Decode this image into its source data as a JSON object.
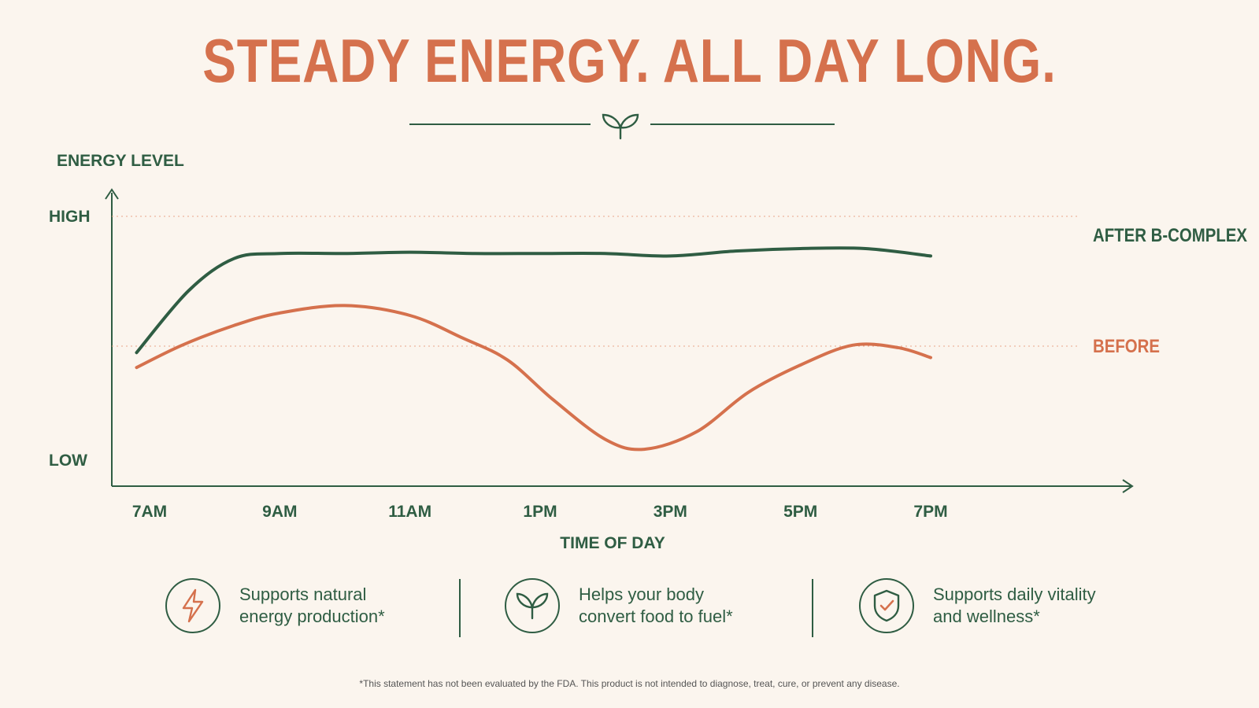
{
  "title": "STEADY ENERGY. ALL DAY LONG.",
  "colors": {
    "after": "#2f5d43",
    "before": "#d5714d",
    "background": "#fbf5ee"
  },
  "chart_data": {
    "type": "line",
    "ylabel": "ENERGY LEVEL",
    "xlabel": "TIME OF DAY",
    "y_tick_labels": [
      "HIGH",
      "LOW"
    ],
    "x": [
      "7AM",
      "9AM",
      "11AM",
      "1PM",
      "3PM",
      "5PM",
      "7PM"
    ],
    "x_hours": [
      7,
      9,
      11,
      13,
      15,
      17,
      19
    ],
    "ylim": [
      0,
      10
    ],
    "series": [
      {
        "name": "AFTER B-COMPLEX",
        "points": [
          [
            6.8,
            4.5
          ],
          [
            7.6,
            7.0
          ],
          [
            8.3,
            8.3
          ],
          [
            9,
            8.5
          ],
          [
            10,
            8.5
          ],
          [
            11,
            8.55
          ],
          [
            12,
            8.5
          ],
          [
            13,
            8.5
          ],
          [
            14,
            8.5
          ],
          [
            15,
            8.4
          ],
          [
            16,
            8.6
          ],
          [
            17,
            8.7
          ],
          [
            18,
            8.7
          ],
          [
            19,
            8.4
          ]
        ]
      },
      {
        "name": "BEFORE",
        "points": [
          [
            6.8,
            3.9
          ],
          [
            7.5,
            4.8
          ],
          [
            8.3,
            5.6
          ],
          [
            9,
            6.1
          ],
          [
            10,
            6.4
          ],
          [
            11,
            6.0
          ],
          [
            11.8,
            5.1
          ],
          [
            12.5,
            4.2
          ],
          [
            13.2,
            2.6
          ],
          [
            14,
            1.0
          ],
          [
            14.6,
            0.6
          ],
          [
            15.4,
            1.3
          ],
          [
            16.2,
            2.9
          ],
          [
            17,
            4.0
          ],
          [
            17.8,
            4.8
          ],
          [
            18.5,
            4.7
          ],
          [
            19,
            4.3
          ]
        ]
      }
    ],
    "grid": "dotted lines at HIGH and mid level",
    "legend": "line-end labels on the right"
  },
  "features": [
    {
      "icon": "lightning-icon",
      "line1": "Supports natural",
      "line2": "energy production*"
    },
    {
      "icon": "sprout-icon",
      "line1": "Helps your body",
      "line2": "convert food to fuel*"
    },
    {
      "icon": "shield-check-icon",
      "line1": "Supports daily vitality",
      "line2": "and wellness*"
    }
  ],
  "disclaimer": "*This statement has not been evaluated by the FDA. This product is not intended to diagnose, treat, cure, or prevent any disease."
}
